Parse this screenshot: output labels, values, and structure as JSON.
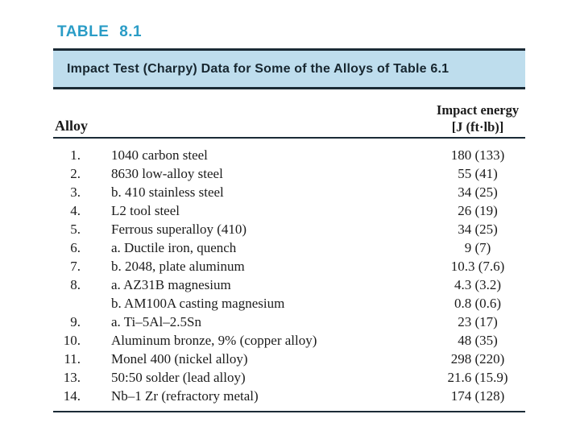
{
  "table_label": "TABLE 8.1",
  "caption": "Impact Test (Charpy) Data for Some of the Alloys of Table 6.1",
  "columns": {
    "alloy": "Alloy",
    "impact_line1": "Impact energy",
    "impact_line2": "[J (ft·lb)]"
  },
  "colors": {
    "accent_teal": "#2a9cc6",
    "band_background": "#bedded",
    "rule_dark": "#1b2b36",
    "body_text": "#1b1b1b"
  },
  "rows": [
    {
      "num": "1.",
      "name": "1040 carbon steel",
      "value": "180 (133)"
    },
    {
      "num": "2.",
      "name": "8630 low-alloy steel",
      "value": "55 (41)"
    },
    {
      "num": "3.",
      "name": "b. 410 stainless steel",
      "value": "34 (25)"
    },
    {
      "num": "4.",
      "name": "L2 tool steel",
      "value": "26 (19)"
    },
    {
      "num": "5.",
      "name": "Ferrous superalloy (410)",
      "value": "34 (25)"
    },
    {
      "num": "6.",
      "name": "a. Ductile iron, quench",
      "value": "9 (7)"
    },
    {
      "num": "7.",
      "name": "b. 2048, plate aluminum",
      "value": "10.3 (7.6)"
    },
    {
      "num": "8.",
      "name": "a. AZ31B magnesium",
      "value": "4.3 (3.2)"
    },
    {
      "num": "",
      "name": "b. AM100A casting magnesium",
      "value": "0.8 (0.6)"
    },
    {
      "num": "9.",
      "name": "a. Ti–5Al–2.5Sn",
      "value": "23 (17)"
    },
    {
      "num": "10.",
      "name": "Aluminum bronze, 9% (copper alloy)",
      "value": "48 (35)"
    },
    {
      "num": "11.",
      "name": "Monel 400 (nickel alloy)",
      "value": "298 (220)"
    },
    {
      "num": "13.",
      "name": "50:50 solder (lead alloy)",
      "value": "21.6 (15.9)"
    },
    {
      "num": "14.",
      "name": "Nb–1 Zr (refractory metal)",
      "value": "174 (128)"
    }
  ]
}
